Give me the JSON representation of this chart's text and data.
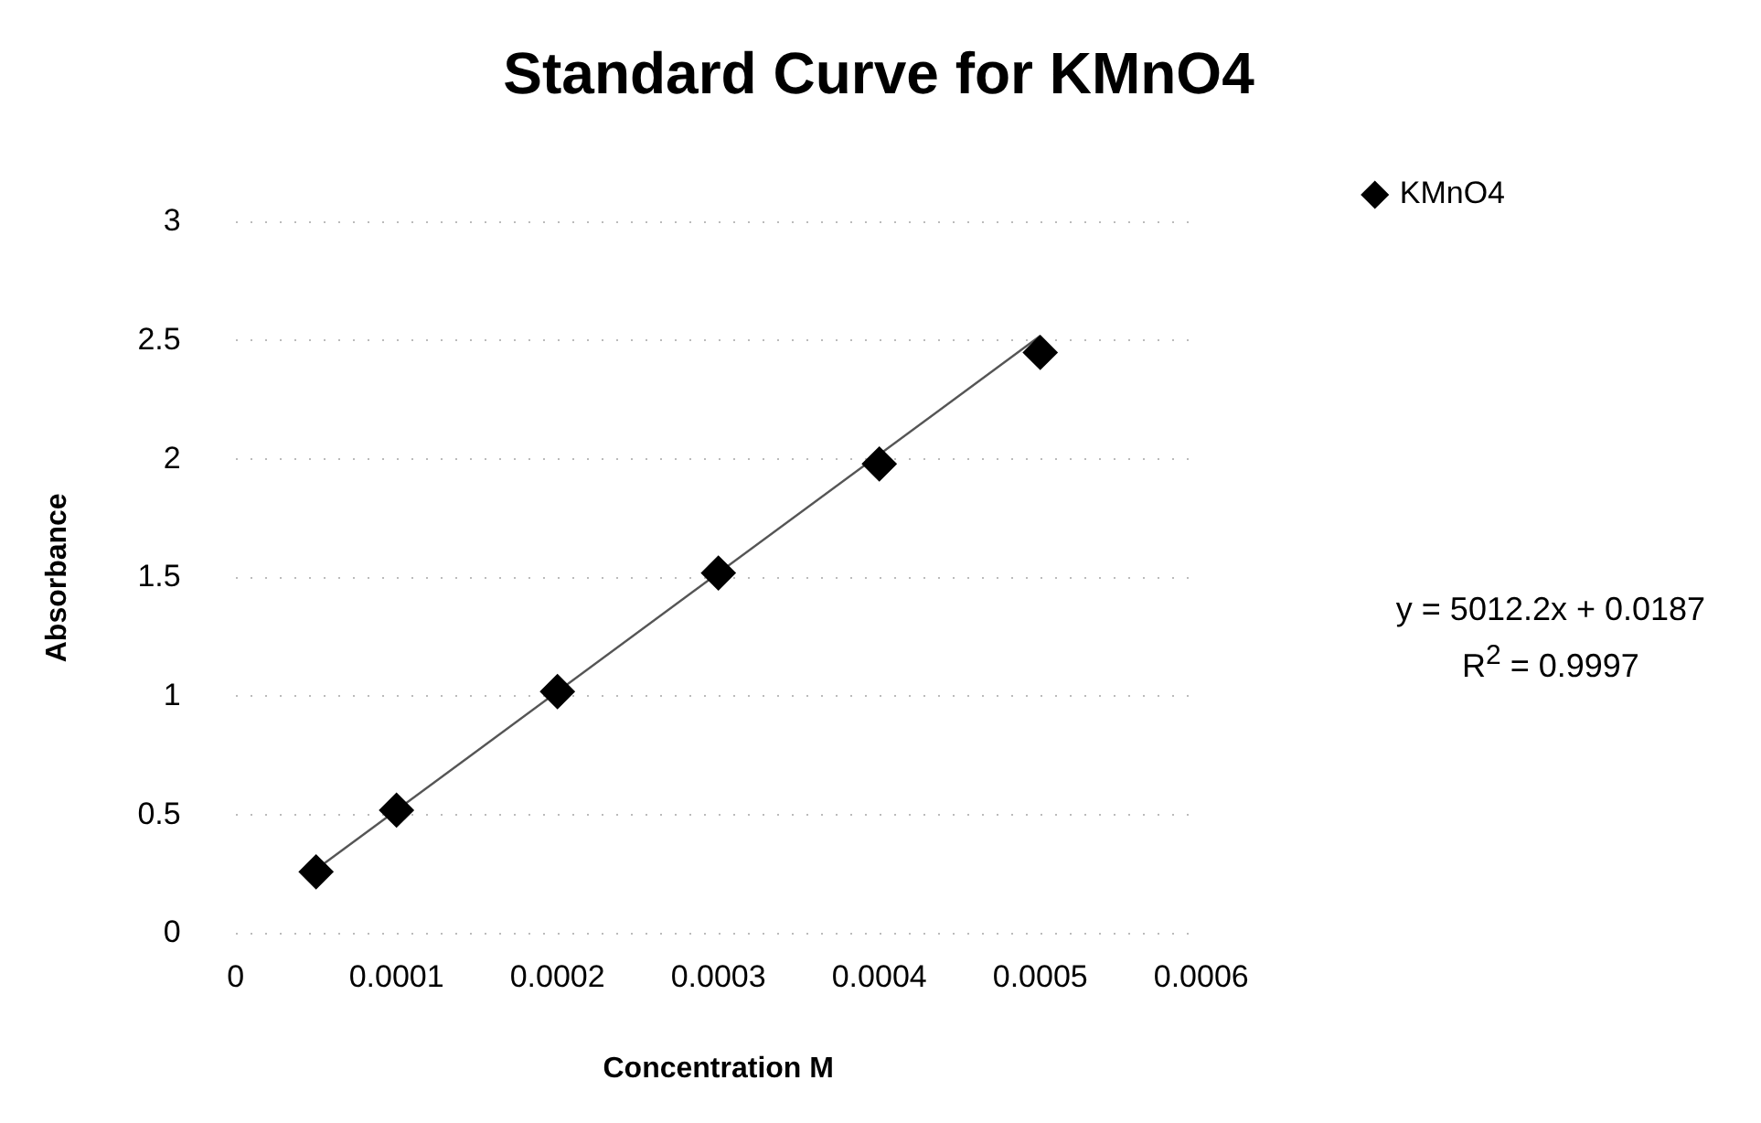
{
  "chart_data": {
    "type": "scatter",
    "title": "Standard Curve for KMnO4",
    "xlabel": "Concentration M",
    "ylabel": "Absorbance",
    "series": [
      {
        "name": "KMnO4",
        "color": "#000000",
        "x": [
          5e-05,
          0.0001,
          0.0002,
          0.0003,
          0.0004,
          0.0005
        ],
        "values": [
          0.26,
          0.52,
          1.02,
          1.52,
          1.98,
          2.45
        ],
        "marker": "diamond"
      },
      {
        "type": "line",
        "color": "#555555",
        "x": [
          5e-05,
          0.0005
        ],
        "values": [
          0.27,
          2.52
        ],
        "marker": "none",
        "line_style": "solid"
      }
    ],
    "xlim": [
      0,
      0.0006
    ],
    "xticks": [
      0,
      0.0001,
      0.0002,
      0.0003,
      0.0004,
      0.0005,
      0.0006
    ],
    "ylim": [
      0,
      3
    ],
    "yticks": [
      0,
      0.5,
      1,
      1.5,
      2,
      2.5,
      3
    ],
    "grid": "y",
    "legend": "right",
    "annotations": [
      "y = 5012.2x + 0.0187",
      "R$^{2}$ = 0.9997"
    ]
  }
}
